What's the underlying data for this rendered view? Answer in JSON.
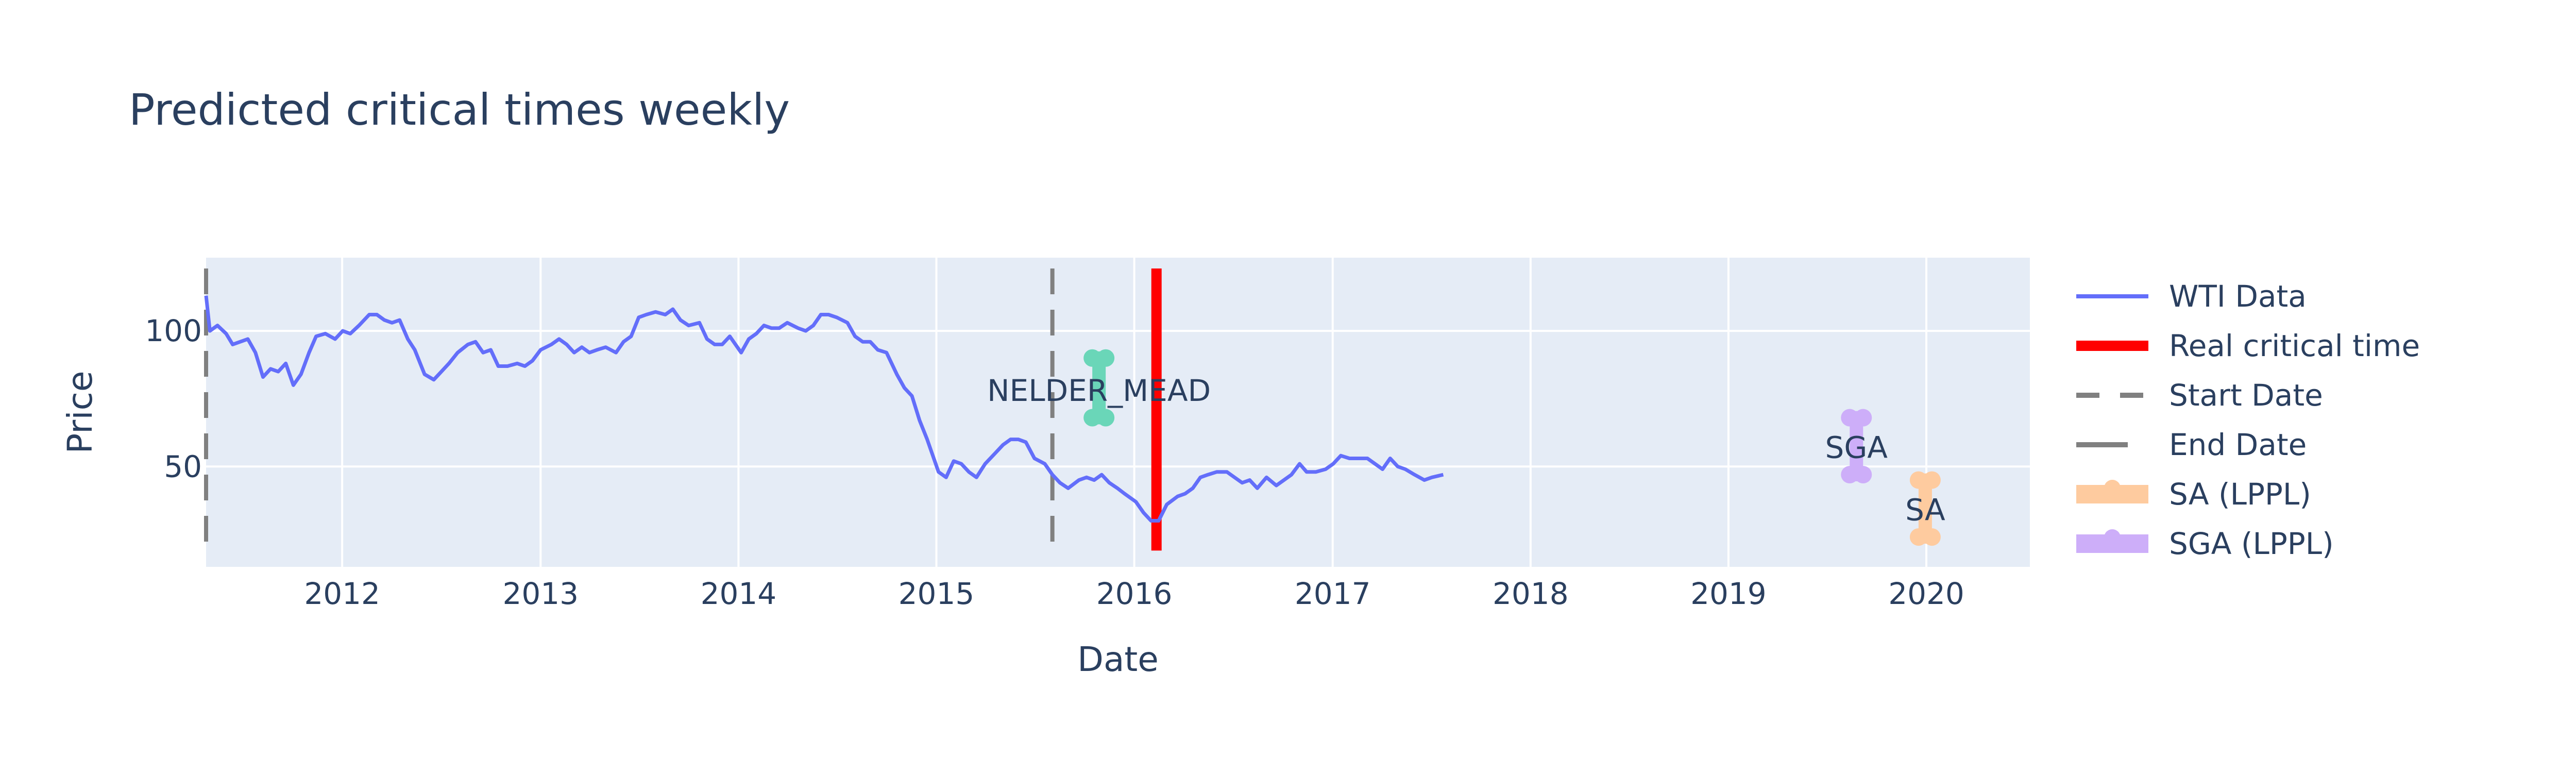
{
  "chart_data": {
    "type": "line",
    "title": "Predicted critical times weekly",
    "xlabel": "Date",
    "ylabel": "Price",
    "xlim": [
      "2011-04-25",
      "2020-07-10"
    ],
    "ylim": [
      13,
      127
    ],
    "x_ticks": [
      "2012",
      "2013",
      "2014",
      "2015",
      "2016",
      "2017",
      "2018",
      "2019",
      "2020"
    ],
    "y_ticks": [
      50,
      100
    ],
    "grid": true,
    "legend_position": "right",
    "background": "#e5ecf6",
    "series": [
      {
        "name": "WTI Data",
        "color": "#636efa",
        "x": [
          "2011-04-25",
          "2011-05-02",
          "2011-05-16",
          "2011-06-01",
          "2011-06-13",
          "2011-06-27",
          "2011-07-11",
          "2011-07-25",
          "2011-08-08",
          "2011-08-22",
          "2011-09-05",
          "2011-09-19",
          "2011-10-03",
          "2011-10-17",
          "2011-11-01",
          "2011-11-14",
          "2011-12-01",
          "2011-12-19",
          "2012-01-02",
          "2012-01-16",
          "2012-02-01",
          "2012-02-20",
          "2012-03-05",
          "2012-03-19",
          "2012-04-02",
          "2012-04-16",
          "2012-05-01",
          "2012-05-14",
          "2012-06-01",
          "2012-06-18",
          "2012-07-02",
          "2012-07-16",
          "2012-08-01",
          "2012-08-20",
          "2012-09-03",
          "2012-09-17",
          "2012-10-01",
          "2012-10-15",
          "2012-11-01",
          "2012-11-19",
          "2012-12-03",
          "2012-12-17",
          "2013-01-01",
          "2013-01-21",
          "2013-02-04",
          "2013-02-18",
          "2013-03-04",
          "2013-03-18",
          "2013-04-01",
          "2013-04-15",
          "2013-05-01",
          "2013-05-20",
          "2013-06-03",
          "2013-06-17",
          "2013-07-01",
          "2013-07-15",
          "2013-08-01",
          "2013-08-19",
          "2013-09-02",
          "2013-09-16",
          "2013-10-01",
          "2013-10-21",
          "2013-11-04",
          "2013-11-18",
          "2013-12-02",
          "2013-12-16",
          "2014-01-06",
          "2014-01-20",
          "2014-02-03",
          "2014-02-17",
          "2014-03-03",
          "2014-03-17",
          "2014-04-01",
          "2014-04-21",
          "2014-05-05",
          "2014-05-19",
          "2014-06-02",
          "2014-06-16",
          "2014-07-01",
          "2014-07-21",
          "2014-08-04",
          "2014-08-18",
          "2014-09-01",
          "2014-09-15",
          "2014-10-01",
          "2014-10-20",
          "2014-11-03",
          "2014-11-17",
          "2014-12-01",
          "2014-12-15",
          "2015-01-05",
          "2015-01-19",
          "2015-02-02",
          "2015-02-16",
          "2015-03-02",
          "2015-03-16",
          "2015-04-01",
          "2015-04-20",
          "2015-05-04",
          "2015-05-18",
          "2015-06-01",
          "2015-06-15",
          "2015-07-01",
          "2015-07-20",
          "2015-08-03",
          "2015-08-17",
          "2015-09-01",
          "2015-09-21",
          "2015-10-05",
          "2015-10-19",
          "2015-11-02",
          "2015-11-16",
          "2015-12-01",
          "2015-12-14",
          "2016-01-04",
          "2016-01-18",
          "2016-02-01",
          "2016-02-15",
          "2016-03-01",
          "2016-03-21",
          "2016-04-04",
          "2016-04-18",
          "2016-05-02",
          "2016-05-16",
          "2016-06-01",
          "2016-06-20",
          "2016-07-04",
          "2016-07-18",
          "2016-08-01",
          "2016-08-15",
          "2016-09-01",
          "2016-09-19",
          "2016-10-03",
          "2016-10-17",
          "2016-11-01",
          "2016-11-14",
          "2016-12-01",
          "2016-12-19",
          "2017-01-02",
          "2017-01-16",
          "2017-02-01",
          "2017-02-20",
          "2017-03-06",
          "2017-03-20",
          "2017-04-03",
          "2017-04-17",
          "2017-05-01",
          "2017-05-15",
          "2017-06-01",
          "2017-06-19",
          "2017-07-03",
          "2017-07-24"
        ],
        "y": [
          113,
          100,
          102,
          99,
          95,
          96,
          97,
          92,
          83,
          86,
          85,
          88,
          80,
          84,
          92,
          98,
          99,
          97,
          100,
          99,
          102,
          106,
          106,
          104,
          103,
          104,
          97,
          93,
          84,
          82,
          85,
          88,
          92,
          95,
          96,
          92,
          93,
          87,
          87,
          88,
          87,
          89,
          93,
          95,
          97,
          95,
          92,
          94,
          92,
          93,
          94,
          92,
          96,
          98,
          105,
          106,
          107,
          106,
          108,
          104,
          102,
          103,
          97,
          95,
          95,
          98,
          92,
          97,
          99,
          102,
          101,
          101,
          103,
          101,
          100,
          102,
          106,
          106,
          105,
          103,
          98,
          96,
          96,
          93,
          92,
          84,
          79,
          76,
          67,
          60,
          48,
          46,
          52,
          51,
          48,
          46,
          51,
          55,
          58,
          60,
          60,
          59,
          53,
          51,
          47,
          44,
          42,
          45,
          46,
          45,
          47,
          44,
          42,
          40,
          37,
          33,
          30,
          30,
          36,
          39,
          40,
          42,
          46,
          47,
          48,
          48,
          46,
          44,
          45,
          42,
          46,
          43,
          45,
          47,
          51,
          48,
          48,
          49,
          51,
          54,
          53,
          53,
          53,
          51,
          49,
          53,
          50,
          49,
          47,
          45,
          46,
          47
        ]
      }
    ],
    "shapes": [
      {
        "name": "Real critical time",
        "x": "2016-02-11",
        "y": [
          19,
          123
        ],
        "color": "#ff0000",
        "style": "solid"
      },
      {
        "name": "Start Date",
        "x": "2011-04-25",
        "y": [
          19,
          123
        ],
        "color": "#808080",
        "style": "dash"
      },
      {
        "name": "End Date",
        "x": "2015-08-03",
        "y": [
          19,
          123
        ],
        "color": "#808080",
        "style": "dash"
      }
    ],
    "markers": [
      {
        "name": "NELDER_MEAD",
        "color": "#6ad6b8",
        "x": "2015-10-28",
        "y": [
          68,
          90
        ],
        "label": "NELDER_MEAD",
        "label_y": 78
      },
      {
        "name": "SA (LPPL)",
        "color": "#fecb9f",
        "x": "2019-12-30",
        "y": [
          24,
          45
        ],
        "label": "SA",
        "label_y": 34
      },
      {
        "name": "SGA (LPPL)",
        "color": "#cdaef9",
        "x": "2019-08-25",
        "y": [
          47,
          68
        ],
        "label": "SGA",
        "label_y": 57
      }
    ],
    "legend": [
      {
        "label": "WTI Data",
        "kind": "line",
        "color": "#636efa"
      },
      {
        "label": "Real critical time",
        "kind": "thick-line",
        "color": "#ff0000"
      },
      {
        "label": "Start Date",
        "kind": "dash",
        "color": "#808080"
      },
      {
        "label": "End Date",
        "kind": "solid-gray",
        "color": "#808080"
      },
      {
        "label": "SA (LPPL)",
        "kind": "marker-band",
        "color": "#fecb9f"
      },
      {
        "label": "SGA (LPPL)",
        "kind": "marker-band",
        "color": "#cdaef9"
      }
    ]
  }
}
